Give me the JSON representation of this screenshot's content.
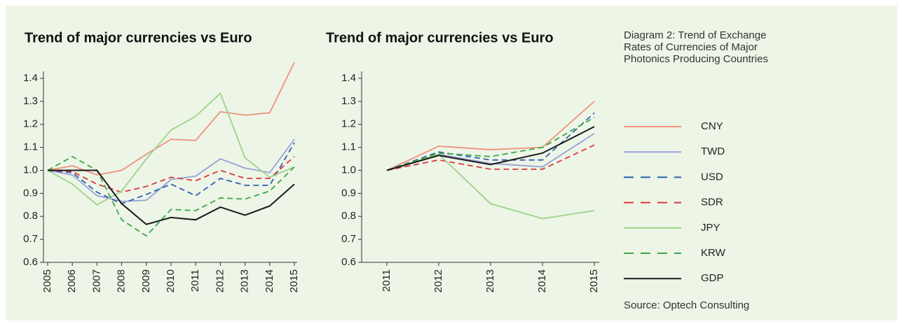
{
  "chart_data": [
    {
      "type": "line",
      "title": "Trend of major currencies vs Euro",
      "categories": [
        "2005",
        "2006",
        "2007",
        "2008",
        "2009",
        "2010",
        "2011",
        "2012",
        "2013",
        "2014",
        "2015"
      ],
      "ylim": [
        0.6,
        1.4
      ],
      "yticks": [
        0.6,
        0.7,
        0.8,
        0.9,
        {
          "value": 1,
          "label": "1.0"
        },
        1.1,
        1.2,
        1.3,
        1.4
      ],
      "series": [
        {
          "name": "CNY",
          "color": "#f0907a",
          "dashed": false,
          "values": [
            1.0,
            1.02,
            0.98,
            1.0,
            1.07,
            1.135,
            1.13,
            1.255,
            1.24,
            1.25,
            1.47
          ]
        },
        {
          "name": "TWD",
          "color": "#98a2d8",
          "dashed": false,
          "values": [
            1.0,
            0.98,
            0.89,
            0.865,
            0.87,
            0.96,
            0.975,
            1.05,
            1.01,
            0.99,
            1.135
          ]
        },
        {
          "name": "USD",
          "color": "#2e5fb0",
          "dashed": true,
          "values": [
            1.0,
            0.99,
            0.905,
            0.855,
            0.895,
            0.94,
            0.89,
            0.965,
            0.935,
            0.935,
            1.12
          ]
        },
        {
          "name": "SDR",
          "color": "#d93a3a",
          "dashed": true,
          "values": [
            1.0,
            0.995,
            0.94,
            0.905,
            0.93,
            0.97,
            0.955,
            1.0,
            0.965,
            0.965,
            1.06
          ]
        },
        {
          "name": "JPY",
          "color": "#9cd38a",
          "dashed": false,
          "values": [
            1.0,
            0.94,
            0.85,
            0.91,
            1.05,
            1.175,
            1.235,
            1.335,
            1.055,
            0.97,
            1.015
          ]
        },
        {
          "name": "KRW",
          "color": "#3aa84a",
          "dashed": true,
          "values": [
            1.0,
            1.06,
            1.0,
            0.785,
            0.715,
            0.83,
            0.825,
            0.88,
            0.875,
            0.91,
            1.015
          ]
        },
        {
          "name": "GDP",
          "color": "#1a1a1a",
          "dashed": false,
          "values": [
            1.0,
            1.0,
            1.0,
            0.855,
            0.765,
            0.795,
            0.785,
            0.84,
            0.805,
            0.845,
            0.94
          ]
        }
      ]
    },
    {
      "type": "line",
      "title": "Trend of major currencies vs Euro",
      "categories": [
        "2011",
        "2012",
        "2013",
        "2014",
        "2015"
      ],
      "ylim": [
        0.6,
        1.4
      ],
      "yticks": [
        0.6,
        0.7,
        0.8,
        0.9,
        {
          "value": 1,
          "label": "1.0"
        },
        1.1,
        1.2,
        1.3,
        1.4
      ],
      "series": [
        {
          "name": "CNY",
          "color": "#f0907a",
          "dashed": false,
          "values": [
            1.0,
            1.105,
            1.09,
            1.1,
            1.3
          ]
        },
        {
          "name": "TWD",
          "color": "#98a2d8",
          "dashed": false,
          "values": [
            1.0,
            1.07,
            1.03,
            1.015,
            1.16
          ]
        },
        {
          "name": "USD",
          "color": "#2e5fb0",
          "dashed": true,
          "values": [
            1.0,
            1.08,
            1.045,
            1.045,
            1.25
          ]
        },
        {
          "name": "SDR",
          "color": "#d93a3a",
          "dashed": true,
          "values": [
            1.0,
            1.045,
            1.005,
            1.005,
            1.11
          ]
        },
        {
          "name": "JPY",
          "color": "#9cd38a",
          "dashed": false,
          "values": [
            1.0,
            1.07,
            0.855,
            0.79,
            0.825
          ]
        },
        {
          "name": "KRW",
          "color": "#3aa84a",
          "dashed": true,
          "values": [
            1.0,
            1.075,
            1.06,
            1.1,
            1.23
          ]
        },
        {
          "name": "GDP",
          "color": "#1a1a1a",
          "dashed": false,
          "values": [
            1.0,
            1.065,
            1.025,
            1.075,
            1.19
          ]
        }
      ]
    }
  ],
  "caption": "Diagram 2: Trend of Exchange Rates of Currencies of Major Photonics Producing Countries",
  "source": "Source: Optech Consulting"
}
